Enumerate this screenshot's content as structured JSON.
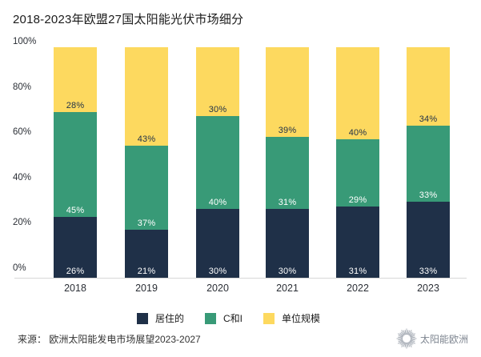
{
  "title": "2018-2023年欧盟27国太阳能光伏市场细分",
  "source": "来源： 欧洲太阳能发电市场展望2023-2027",
  "logo": {
    "text": "太阳能欧洲",
    "icon": "sunburst-icon",
    "color": "#9aa1ab"
  },
  "colors": {
    "residential": "#1f3048",
    "commercial_industrial": "#389a77",
    "utility_scale": "#fdd95f",
    "axis_line": "#d8d8d8"
  },
  "chart_data": {
    "type": "bar",
    "stacked": true,
    "title": "2018-2023年欧盟27国太阳能光伏市场细分",
    "categories": [
      "2018",
      "2019",
      "2020",
      "2021",
      "2022",
      "2023"
    ],
    "series": [
      {
        "name": "居住的",
        "color": "#1f3048",
        "label_color": "#ffffff",
        "values": [
          26,
          21,
          30,
          30,
          31,
          33
        ]
      },
      {
        "name": "C和I",
        "color": "#389a77",
        "label_color": "#ffffff",
        "values": [
          45,
          37,
          40,
          31,
          29,
          33
        ]
      },
      {
        "name": "单位规模",
        "color": "#fdd95f",
        "label_color": "#1f3048",
        "values": [
          28,
          43,
          30,
          39,
          40,
          34
        ]
      }
    ],
    "y_ticks": [
      "0%",
      "20%",
      "40%",
      "60%",
      "80%",
      "100%"
    ],
    "ylim": [
      0,
      100
    ],
    "grid": false,
    "legend_position": "bottom",
    "value_suffix": "%",
    "value_label_position": "inside-bottom-of-segment"
  }
}
